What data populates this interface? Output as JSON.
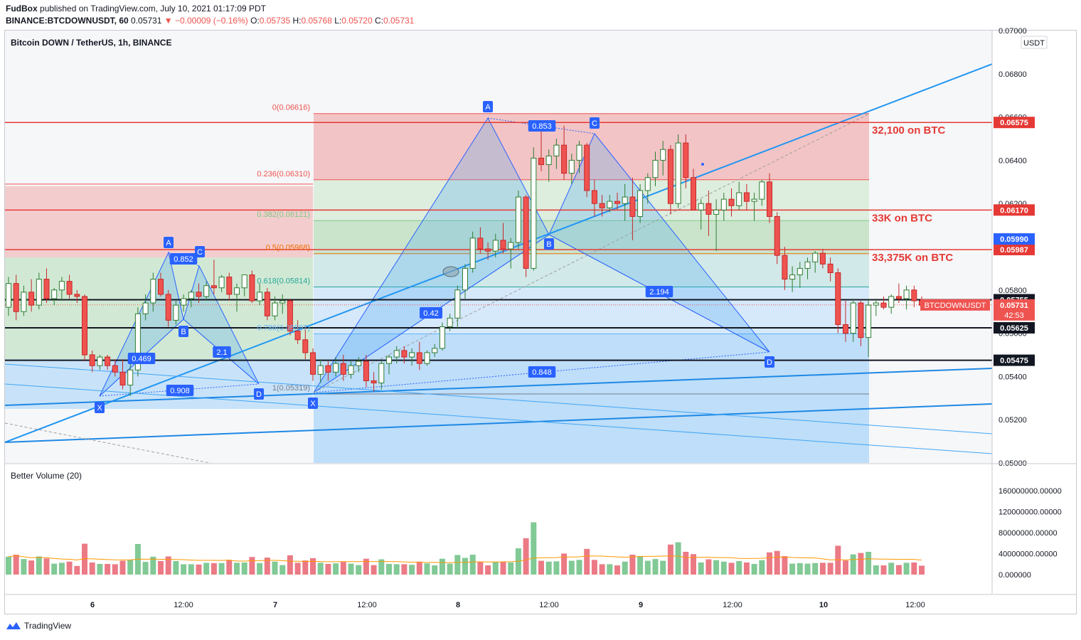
{
  "header": {
    "author": "FudBox",
    "published": "published on TradingView.com, July 10, 2021 01:17:09 PDT",
    "symbol": "BINANCE:BTCDOWNUSDT, 60",
    "last": "0.05731",
    "change": "−0.00009 (−0.16%)",
    "o_label": "O:",
    "o_value": "0.05735",
    "h_label": "H:",
    "h_value": "0.05768",
    "l_label": "L:",
    "l_value": "0.05720",
    "c_label": "C:",
    "c_value": "0.05731"
  },
  "chart_title": "Bitcoin DOWN / TetherUS, 1h, BINANCE",
  "currency_tag": "USDT",
  "price_axis": [
    "0.07000",
    "0.06800",
    "0.06600",
    "0.06400",
    "0.06200",
    "0.06000",
    "0.05800",
    "0.05600",
    "0.05400",
    "0.05200",
    "0.05000"
  ],
  "time_axis": [
    "6",
    "12:00",
    "7",
    "12:00",
    "8",
    "12:00",
    "9",
    "12:00",
    "10",
    "12:00"
  ],
  "fib_levels": [
    {
      "label": "0(0.06616)",
      "price": 0.06616,
      "color": "#ef5350"
    },
    {
      "label": "0.236(0.06310)",
      "price": 0.0631,
      "color": "#ef5350"
    },
    {
      "label": "0.382(0.06121)",
      "price": 0.06121,
      "color": "#81c784"
    },
    {
      "label": "0.5(0.05968)",
      "price": 0.05968,
      "color": "#ef6c00"
    },
    {
      "label": "0.618(0.05814)",
      "price": 0.05814,
      "color": "#26a69a"
    },
    {
      "label": "0.786(0.05597)",
      "price": 0.05597,
      "color": "#64b5f6"
    },
    {
      "label": "1(0.05319)",
      "price": 0.05319,
      "color": "#787b86"
    }
  ],
  "horizontal_levels": [
    {
      "price": 0.06575,
      "label": "0.06575",
      "note": "32,100 on BTC",
      "color": "#e53935"
    },
    {
      "price": 0.0617,
      "label": "0.06170",
      "note": "33K on BTC",
      "color": "#e53935"
    },
    {
      "price": 0.05987,
      "label": "0.05987",
      "note": "33,375K on BTC",
      "color": "#e53935"
    },
    {
      "price": 0.05755,
      "label": "0.05755",
      "note": "",
      "color": "#131722"
    },
    {
      "price": 0.05625,
      "label": "0.05625",
      "note": "",
      "color": "#131722"
    },
    {
      "price": 0.05475,
      "label": "0.05475",
      "note": "",
      "color": "#131722"
    }
  ],
  "extra_price_labels": [
    {
      "price": 0.0599,
      "label": "0.05990",
      "color": "#2962ff"
    }
  ],
  "current_price": {
    "symbol": "BTCDOWNUSDT",
    "price": 0.05731,
    "label": "0.05731",
    "countdown": "42:53",
    "color": "#ef5350"
  },
  "pattern1": {
    "points": [
      {
        "label": "X"
      },
      {
        "label": "A"
      },
      {
        "label": "B"
      },
      {
        "label": "C"
      },
      {
        "label": "D"
      }
    ],
    "ratios": [
      "0.852",
      "0.469",
      "2.1",
      "0.908"
    ]
  },
  "pattern2": {
    "points": [
      {
        "label": "X"
      },
      {
        "label": "A"
      },
      {
        "label": "B"
      },
      {
        "label": "C"
      },
      {
        "label": "D"
      }
    ],
    "ratios": [
      "0.853",
      "0.42",
      "2.194",
      "0.848"
    ]
  },
  "volume_panel": {
    "title": "Better Volume (20)",
    "axis": [
      "160000000.00000",
      "120000000.00000",
      "80000000.00000",
      "40000000.00000",
      "0.000000"
    ]
  },
  "chart_data": [
    {
      "type": "candlestick",
      "title": "Bitcoin DOWN / TetherUS, 1h, BINANCE",
      "ylim": [
        0.05,
        0.07
      ],
      "x_ticks": [
        "6",
        "12:00",
        "7",
        "12:00",
        "8",
        "12:00",
        "9",
        "12:00",
        "10",
        "12:00"
      ],
      "ohlc": [
        [
          0.0572,
          0.0586,
          0.0568,
          0.0583
        ],
        [
          0.0583,
          0.0587,
          0.0566,
          0.057
        ],
        [
          0.057,
          0.0582,
          0.0568,
          0.0579
        ],
        [
          0.0579,
          0.0585,
          0.057,
          0.0573
        ],
        [
          0.0573,
          0.0588,
          0.0571,
          0.0585
        ],
        [
          0.0585,
          0.059,
          0.0574,
          0.0576
        ],
        [
          0.0576,
          0.0581,
          0.0573,
          0.058
        ],
        [
          0.058,
          0.0586,
          0.0575,
          0.0584
        ],
        [
          0.0584,
          0.0587,
          0.0576,
          0.0578
        ],
        [
          0.0578,
          0.058,
          0.0574,
          0.0577
        ],
        [
          0.0577,
          0.0578,
          0.0547,
          0.055
        ],
        [
          0.055,
          0.0552,
          0.0542,
          0.0545
        ],
        [
          0.0545,
          0.055,
          0.0543,
          0.0549
        ],
        [
          0.0549,
          0.055,
          0.0543,
          0.0545
        ],
        [
          0.0545,
          0.0548,
          0.054,
          0.0542
        ],
        [
          0.0542,
          0.0548,
          0.0534,
          0.0536
        ],
        [
          0.0536,
          0.0546,
          0.0531,
          0.0543
        ],
        [
          0.0543,
          0.0572,
          0.054,
          0.0569
        ],
        [
          0.0569,
          0.0578,
          0.0566,
          0.0574
        ],
        [
          0.0574,
          0.0588,
          0.057,
          0.0585
        ],
        [
          0.0585,
          0.0588,
          0.0577,
          0.0578
        ],
        [
          0.0578,
          0.058,
          0.0563,
          0.0566
        ],
        [
          0.0566,
          0.0575,
          0.0564,
          0.0573
        ],
        [
          0.0573,
          0.0578,
          0.057,
          0.0576
        ],
        [
          0.0576,
          0.058,
          0.0572,
          0.0579
        ],
        [
          0.0579,
          0.0583,
          0.0574,
          0.0577
        ],
        [
          0.0577,
          0.0584,
          0.0575,
          0.0582
        ],
        [
          0.0582,
          0.0594,
          0.0578,
          0.0581
        ],
        [
          0.0581,
          0.0587,
          0.0579,
          0.0586
        ],
        [
          0.0586,
          0.0588,
          0.0575,
          0.0578
        ],
        [
          0.0578,
          0.0583,
          0.057,
          0.0581
        ],
        [
          0.0581,
          0.0585,
          0.0577,
          0.0587
        ],
        [
          0.0587,
          0.0589,
          0.0574,
          0.0575
        ],
        [
          0.0575,
          0.0583,
          0.0573,
          0.0579
        ],
        [
          0.0579,
          0.0581,
          0.0566,
          0.0568
        ],
        [
          0.0568,
          0.0577,
          0.0566,
          0.0574
        ],
        [
          0.0574,
          0.0578,
          0.0569,
          0.0575
        ],
        [
          0.0575,
          0.0576,
          0.0559,
          0.0561
        ],
        [
          0.0561,
          0.0566,
          0.0555,
          0.0557
        ],
        [
          0.0557,
          0.0563,
          0.0548,
          0.0551
        ],
        [
          0.0551,
          0.0553,
          0.0538,
          0.0541
        ],
        [
          0.0541,
          0.0548,
          0.0537,
          0.0545
        ],
        [
          0.0545,
          0.0547,
          0.0538,
          0.0542
        ],
        [
          0.0542,
          0.0549,
          0.054,
          0.0546
        ],
        [
          0.0546,
          0.055,
          0.0538,
          0.0541
        ],
        [
          0.0541,
          0.0547,
          0.0539,
          0.0545
        ],
        [
          0.0545,
          0.0549,
          0.0542,
          0.0547
        ],
        [
          0.0547,
          0.055,
          0.0535,
          0.0538
        ],
        [
          0.0538,
          0.0542,
          0.0533,
          0.0537
        ],
        [
          0.0537,
          0.0547,
          0.0534,
          0.0546
        ],
        [
          0.0546,
          0.055,
          0.0541,
          0.0549
        ],
        [
          0.0549,
          0.0554,
          0.0546,
          0.0552
        ],
        [
          0.0552,
          0.0554,
          0.0546,
          0.0549
        ],
        [
          0.0549,
          0.0553,
          0.0545,
          0.0551
        ],
        [
          0.0551,
          0.0556,
          0.0543,
          0.0546
        ],
        [
          0.0546,
          0.0552,
          0.0545,
          0.0551
        ],
        [
          0.0551,
          0.0555,
          0.0549,
          0.0553
        ],
        [
          0.0553,
          0.0565,
          0.0552,
          0.0563
        ],
        [
          0.0563,
          0.0569,
          0.0561,
          0.0567
        ],
        [
          0.0567,
          0.0582,
          0.0562,
          0.058
        ],
        [
          0.058,
          0.0592,
          0.0576,
          0.059
        ],
        [
          0.059,
          0.0607,
          0.0588,
          0.0604
        ],
        [
          0.0604,
          0.0609,
          0.0597,
          0.0599
        ],
        [
          0.0599,
          0.0602,
          0.0594,
          0.0598
        ],
        [
          0.0598,
          0.0606,
          0.0595,
          0.0603
        ],
        [
          0.0603,
          0.0611,
          0.0597,
          0.0599
        ],
        [
          0.0599,
          0.0604,
          0.059,
          0.0602
        ],
        [
          0.0602,
          0.0626,
          0.0599,
          0.0623
        ],
        [
          0.0623,
          0.0624,
          0.0586,
          0.059
        ],
        [
          0.059,
          0.0646,
          0.0589,
          0.0641
        ],
        [
          0.0641,
          0.0655,
          0.0635,
          0.0638
        ],
        [
          0.0638,
          0.0645,
          0.063,
          0.0642
        ],
        [
          0.0642,
          0.065,
          0.0636,
          0.0647
        ],
        [
          0.0647,
          0.0656,
          0.0631,
          0.0634
        ],
        [
          0.0634,
          0.0643,
          0.0629,
          0.064
        ],
        [
          0.064,
          0.0649,
          0.0634,
          0.0647
        ],
        [
          0.0647,
          0.0648,
          0.0623,
          0.0626
        ],
        [
          0.0626,
          0.0631,
          0.0614,
          0.062
        ],
        [
          0.062,
          0.0624,
          0.0614,
          0.0618
        ],
        [
          0.0618,
          0.0624,
          0.0616,
          0.0621
        ],
        [
          0.0621,
          0.0625,
          0.0617,
          0.062
        ],
        [
          0.062,
          0.0629,
          0.0612,
          0.0623
        ],
        [
          0.0623,
          0.0632,
          0.0603,
          0.0614
        ],
        [
          0.0614,
          0.0629,
          0.0611,
          0.0626
        ],
        [
          0.0626,
          0.0634,
          0.062,
          0.0632
        ],
        [
          0.0632,
          0.0644,
          0.0628,
          0.064
        ],
        [
          0.064,
          0.0649,
          0.0633,
          0.0645
        ],
        [
          0.0645,
          0.0647,
          0.0615,
          0.062
        ],
        [
          0.062,
          0.0652,
          0.0618,
          0.0648
        ],
        [
          0.0648,
          0.0652,
          0.0627,
          0.0632
        ],
        [
          0.0632,
          0.0636,
          0.0617,
          0.0617
        ],
        [
          0.0617,
          0.0622,
          0.0608,
          0.062
        ],
        [
          0.062,
          0.0626,
          0.0605,
          0.0615
        ],
        [
          0.0615,
          0.0622,
          0.0598,
          0.0617
        ],
        [
          0.0617,
          0.0625,
          0.0612,
          0.0622
        ],
        [
          0.0622,
          0.0627,
          0.0614,
          0.0619
        ],
        [
          0.0619,
          0.063,
          0.0617,
          0.0625
        ],
        [
          0.0625,
          0.0629,
          0.0617,
          0.0621
        ],
        [
          0.0621,
          0.0625,
          0.0612,
          0.0622
        ],
        [
          0.0622,
          0.0631,
          0.0619,
          0.063
        ],
        [
          0.063,
          0.0634,
          0.0611,
          0.0614
        ],
        [
          0.0614,
          0.0616,
          0.0592,
          0.0596
        ],
        [
          0.0596,
          0.06,
          0.058,
          0.0585
        ],
        [
          0.0585,
          0.0591,
          0.0579,
          0.0587
        ],
        [
          0.0587,
          0.0593,
          0.0581,
          0.059
        ],
        [
          0.059,
          0.0595,
          0.0585,
          0.0593
        ],
        [
          0.0593,
          0.0598,
          0.0588,
          0.0597
        ],
        [
          0.0597,
          0.0599,
          0.059,
          0.0592
        ],
        [
          0.0592,
          0.0595,
          0.0584,
          0.0588
        ],
        [
          0.0588,
          0.059,
          0.056,
          0.0564
        ],
        [
          0.0564,
          0.0575,
          0.0556,
          0.056
        ],
        [
          0.056,
          0.0576,
          0.0556,
          0.0574
        ],
        [
          0.0574,
          0.0575,
          0.0554,
          0.0558
        ],
        [
          0.0558,
          0.0576,
          0.0549,
          0.0573
        ],
        [
          0.0573,
          0.0576,
          0.0568,
          0.0574
        ],
        [
          0.0574,
          0.0577,
          0.0571,
          0.0572
        ],
        [
          0.0572,
          0.0578,
          0.0569,
          0.0577
        ],
        [
          0.0577,
          0.0583,
          0.0574,
          0.0576
        ],
        [
          0.0576,
          0.0582,
          0.0571,
          0.058
        ],
        [
          0.058,
          0.0582,
          0.0572,
          0.0575
        ],
        [
          0.0575,
          0.0577,
          0.0572,
          0.0573
        ]
      ]
    },
    {
      "type": "bar",
      "title": "Better Volume (20)",
      "ylim": [
        0,
        180000000
      ],
      "moving_average_length": 20
    }
  ]
}
